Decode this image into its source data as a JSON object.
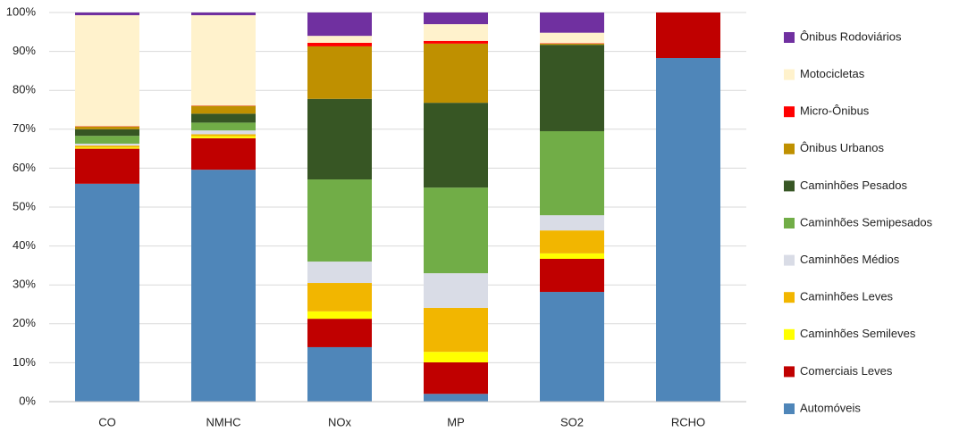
{
  "chart_data": {
    "type": "stacked_bar_100",
    "categories": [
      "CO",
      "NMHC",
      "NOx",
      "MP",
      "SO2",
      "RCHO"
    ],
    "series": [
      {
        "name": "Automóveis",
        "color": "#4f86b9",
        "values": [
          56,
          59.6,
          14,
          2,
          28.2,
          88.3
        ]
      },
      {
        "name": "Comerciais Leves",
        "color": "#c00000",
        "values": [
          9,
          8.1,
          7.3,
          8.1,
          8.5,
          11.7
        ]
      },
      {
        "name": "Caminhões Semileves",
        "color": "#ffff00",
        "values": [
          0.3,
          0.5,
          1.9,
          2.7,
          1.4,
          0
        ]
      },
      {
        "name": "Caminhões Leves",
        "color": "#f2b600",
        "values": [
          0.5,
          0.5,
          7.3,
          11.3,
          5.9,
          0
        ]
      },
      {
        "name": "Caminhões Médios",
        "color": "#d9dce6",
        "values": [
          0.5,
          1,
          5.5,
          8.9,
          3.9,
          0
        ]
      },
      {
        "name": "Caminhões Semipesados",
        "color": "#71ad47",
        "values": [
          2,
          2,
          21.1,
          22,
          21.6,
          0
        ]
      },
      {
        "name": "Caminhões Pesados",
        "color": "#375624",
        "values": [
          1.7,
          2.3,
          20.7,
          21.8,
          22.2,
          0
        ]
      },
      {
        "name": "Ônibus Urbanos",
        "color": "#bf9000",
        "values": [
          0.7,
          2,
          13.5,
          15.2,
          0.3,
          0
        ]
      },
      {
        "name": "Micro-Ônibus",
        "color": "#ff0000",
        "values": [
          0.1,
          0.1,
          0.9,
          0.7,
          0.1,
          0
        ]
      },
      {
        "name": "Motocicletas",
        "color": "#fff2cc",
        "values": [
          28.5,
          23.2,
          1.8,
          4.3,
          2.7,
          0
        ]
      },
      {
        "name": "Ônibus Rodoviários",
        "color": "#7030a0",
        "values": [
          0.7,
          0.7,
          6,
          3,
          5.2,
          0
        ]
      }
    ],
    "ylim": [
      0,
      100
    ],
    "yticks": [
      {
        "value": 0,
        "label": "0%"
      },
      {
        "value": 10,
        "label": "10%"
      },
      {
        "value": 20,
        "label": "20%"
      },
      {
        "value": 30,
        "label": "30%"
      },
      {
        "value": 40,
        "label": "40%"
      },
      {
        "value": 50,
        "label": "50%"
      },
      {
        "value": 60,
        "label": "60%"
      },
      {
        "value": 70,
        "label": "70%"
      },
      {
        "value": 80,
        "label": "80%"
      },
      {
        "value": 90,
        "label": "90%"
      },
      {
        "value": 100,
        "label": "100%"
      }
    ],
    "grid": true,
    "legend": "right"
  }
}
